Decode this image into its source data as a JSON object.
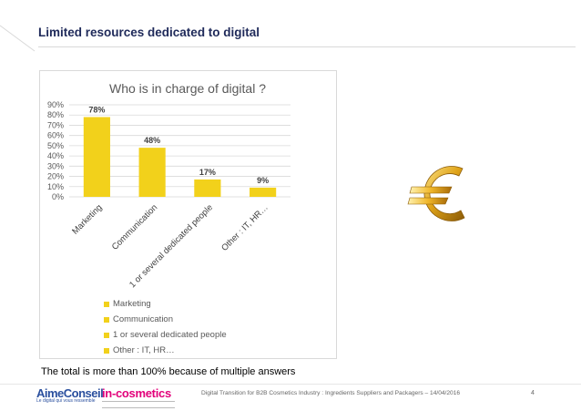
{
  "slide": {
    "title": "Limited resources dedicated to digital",
    "note": "The total is more than 100% because of multiple answers"
  },
  "chart_data": {
    "type": "bar",
    "title": "Who is in charge of digital ?",
    "categories": [
      "Marketing",
      "Communication",
      "1 or several dedicated people",
      "Other : IT, HR…"
    ],
    "values": [
      78,
      48,
      17,
      9
    ],
    "value_labels": [
      "78%",
      "48%",
      "17%",
      "9%"
    ],
    "yticks": [
      "0%",
      "10%",
      "20%",
      "30%",
      "40%",
      "50%",
      "60%",
      "70%",
      "80%",
      "90%"
    ],
    "ylim": [
      0,
      90
    ],
    "grid": true,
    "legend_position": "bottom-left",
    "legend": [
      "Marketing",
      "Communication",
      "1 or several dedicated people",
      "Other : IT, HR…"
    ],
    "bar_color": "#f2d11b"
  },
  "footer": {
    "logo_left": "AimeConseil",
    "logo_left_tagline": "Le digital qui vous ressemble",
    "logo_right": "in-cosmetics",
    "text": "Digital Transition for B2B Cosmetics Industry : Ingredients Suppliers and Packagers – 14/04/2016",
    "page_number": "4"
  },
  "colors": {
    "title": "#1f2a5a",
    "bar": "#f2d11b",
    "euro_gold": "#e0a419"
  },
  "icons": [
    "euro-icon"
  ]
}
